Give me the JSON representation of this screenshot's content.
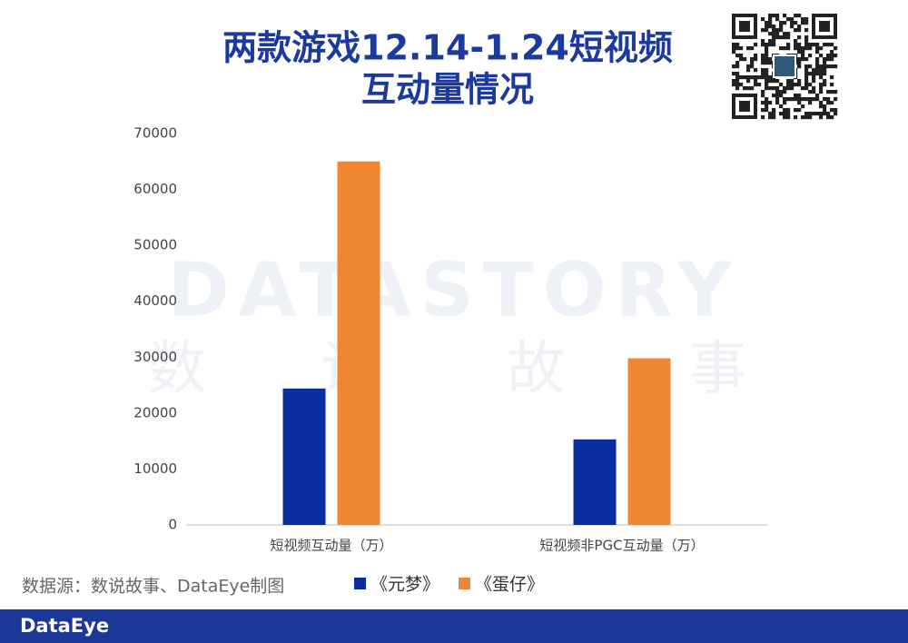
{
  "chart_data": {
    "type": "bar",
    "title": [
      "两款游戏12.14-1.24短视频",
      "互动量情况"
    ],
    "categories": [
      "短视频互动量（万）",
      "短视频非PGC互动量（万）"
    ],
    "series": [
      {
        "name": "《元梦》",
        "color": "#0a2e9f",
        "values": [
          24400,
          15300
        ]
      },
      {
        "name": "《蛋仔》",
        "color": "#ef8632",
        "values": [
          65000,
          29800
        ]
      }
    ],
    "ylim": [
      0,
      70000
    ],
    "yticks": [
      0,
      10000,
      20000,
      30000,
      40000,
      50000,
      60000,
      70000
    ],
    "grid": false,
    "legend": "bottom"
  },
  "watermark": {
    "brand": "DATASTORY",
    "characters": [
      "数",
      "说",
      "故",
      "事"
    ]
  },
  "footer": {
    "source": "数据源：数说故事、DataEye制图",
    "brand": "DataEye"
  }
}
